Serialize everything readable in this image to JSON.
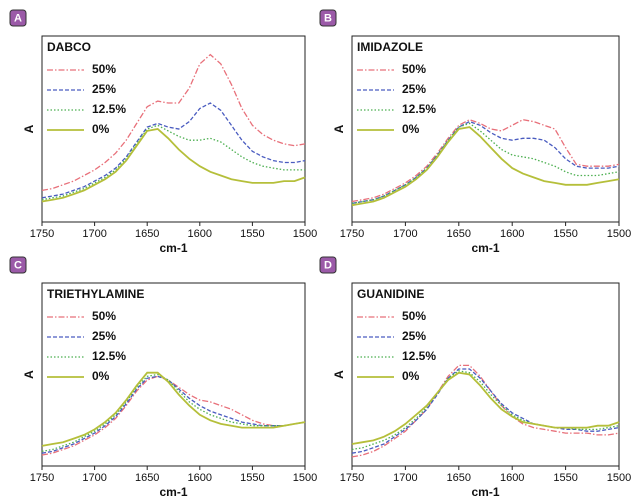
{
  "chart_data": [
    {
      "type": "line",
      "panel": "A",
      "title": "DABCO",
      "xlabel": "cm-1",
      "ylabel": "A",
      "x": [
        1750,
        1740,
        1730,
        1720,
        1710,
        1700,
        1690,
        1680,
        1670,
        1660,
        1650,
        1640,
        1630,
        1620,
        1610,
        1600,
        1590,
        1580,
        1570,
        1560,
        1550,
        1540,
        1530,
        1520,
        1510,
        1500
      ],
      "xlim": [
        1750,
        1500
      ],
      "xticks": [
        1750,
        1700,
        1650,
        1600,
        1550,
        1500
      ],
      "ylim": [
        0,
        1
      ],
      "series": [
        {
          "name": "50%",
          "color": "#e8707a",
          "style": "dashdot",
          "values": [
            0.17,
            0.18,
            0.2,
            0.22,
            0.25,
            0.28,
            0.32,
            0.37,
            0.44,
            0.53,
            0.62,
            0.65,
            0.64,
            0.64,
            0.72,
            0.85,
            0.9,
            0.85,
            0.74,
            0.61,
            0.52,
            0.47,
            0.44,
            0.42,
            0.41,
            0.42
          ]
        },
        {
          "name": "25%",
          "color": "#4a5cc0",
          "style": "dashed",
          "values": [
            0.13,
            0.14,
            0.15,
            0.17,
            0.19,
            0.22,
            0.25,
            0.29,
            0.35,
            0.43,
            0.51,
            0.53,
            0.51,
            0.5,
            0.54,
            0.61,
            0.64,
            0.6,
            0.52,
            0.44,
            0.38,
            0.35,
            0.33,
            0.32,
            0.32,
            0.33
          ]
        },
        {
          "name": "12.5%",
          "color": "#4caf50",
          "style": "dotted",
          "values": [
            0.12,
            0.13,
            0.14,
            0.16,
            0.18,
            0.21,
            0.24,
            0.28,
            0.34,
            0.42,
            0.5,
            0.52,
            0.49,
            0.46,
            0.44,
            0.44,
            0.45,
            0.43,
            0.39,
            0.35,
            0.32,
            0.3,
            0.29,
            0.28,
            0.28,
            0.28
          ]
        },
        {
          "name": "0%",
          "color": "#b5bf3a",
          "style": "solid",
          "values": [
            0.11,
            0.12,
            0.13,
            0.15,
            0.17,
            0.2,
            0.23,
            0.27,
            0.33,
            0.41,
            0.49,
            0.5,
            0.45,
            0.39,
            0.34,
            0.3,
            0.27,
            0.25,
            0.23,
            0.22,
            0.21,
            0.21,
            0.21,
            0.22,
            0.22,
            0.24
          ]
        }
      ]
    },
    {
      "type": "line",
      "panel": "B",
      "title": "IMIDAZOLE",
      "xlabel": "cm-1",
      "ylabel": "A",
      "x": [
        1750,
        1740,
        1730,
        1720,
        1710,
        1700,
        1690,
        1680,
        1670,
        1660,
        1650,
        1640,
        1630,
        1620,
        1610,
        1600,
        1590,
        1580,
        1570,
        1560,
        1550,
        1540,
        1530,
        1520,
        1510,
        1500
      ],
      "xlim": [
        1750,
        1500
      ],
      "xticks": [
        1750,
        1700,
        1650,
        1600,
        1550,
        1500
      ],
      "ylim": [
        0,
        1
      ],
      "series": [
        {
          "name": "50%",
          "color": "#e8707a",
          "style": "dashdot",
          "values": [
            0.11,
            0.12,
            0.13,
            0.15,
            0.18,
            0.21,
            0.25,
            0.3,
            0.37,
            0.45,
            0.52,
            0.55,
            0.53,
            0.5,
            0.49,
            0.52,
            0.55,
            0.54,
            0.52,
            0.5,
            0.4,
            0.31,
            0.3,
            0.3,
            0.3,
            0.31
          ]
        },
        {
          "name": "25%",
          "color": "#4a5cc0",
          "style": "dashed",
          "values": [
            0.1,
            0.11,
            0.12,
            0.14,
            0.17,
            0.2,
            0.24,
            0.29,
            0.36,
            0.44,
            0.51,
            0.54,
            0.52,
            0.48,
            0.45,
            0.44,
            0.45,
            0.45,
            0.44,
            0.4,
            0.34,
            0.3,
            0.29,
            0.29,
            0.29,
            0.3
          ]
        },
        {
          "name": "12.5%",
          "color": "#4caf50",
          "style": "dotted",
          "values": [
            0.1,
            0.11,
            0.12,
            0.14,
            0.17,
            0.2,
            0.24,
            0.29,
            0.36,
            0.44,
            0.51,
            0.53,
            0.49,
            0.44,
            0.39,
            0.36,
            0.35,
            0.34,
            0.32,
            0.3,
            0.27,
            0.25,
            0.25,
            0.25,
            0.26,
            0.27
          ]
        },
        {
          "name": "0%",
          "color": "#b5bf3a",
          "style": "solid",
          "values": [
            0.09,
            0.1,
            0.11,
            0.13,
            0.16,
            0.19,
            0.23,
            0.28,
            0.35,
            0.43,
            0.5,
            0.51,
            0.46,
            0.4,
            0.34,
            0.29,
            0.26,
            0.24,
            0.22,
            0.21,
            0.2,
            0.2,
            0.2,
            0.21,
            0.22,
            0.23
          ]
        }
      ]
    },
    {
      "type": "line",
      "panel": "C",
      "title": "TRIETHYLAMINE",
      "xlabel": "cm-1",
      "ylabel": "A",
      "x": [
        1750,
        1740,
        1730,
        1720,
        1710,
        1700,
        1690,
        1680,
        1670,
        1660,
        1650,
        1640,
        1630,
        1620,
        1610,
        1600,
        1590,
        1580,
        1570,
        1560,
        1550,
        1540,
        1530,
        1520,
        1510,
        1500
      ],
      "xlim": [
        1750,
        1500
      ],
      "xticks": [
        1750,
        1700,
        1650,
        1600,
        1550,
        1500
      ],
      "ylim": [
        0,
        1
      ],
      "series": [
        {
          "name": "50%",
          "color": "#e8707a",
          "style": "dashdot",
          "values": [
            0.06,
            0.07,
            0.09,
            0.11,
            0.14,
            0.17,
            0.21,
            0.26,
            0.33,
            0.41,
            0.47,
            0.49,
            0.47,
            0.43,
            0.39,
            0.36,
            0.35,
            0.33,
            0.31,
            0.28,
            0.25,
            0.23,
            0.22,
            0.22,
            0.23,
            0.24
          ]
        },
        {
          "name": "25%",
          "color": "#4a5cc0",
          "style": "dashed",
          "values": [
            0.07,
            0.08,
            0.1,
            0.12,
            0.15,
            0.18,
            0.22,
            0.27,
            0.34,
            0.42,
            0.48,
            0.49,
            0.47,
            0.42,
            0.37,
            0.33,
            0.3,
            0.28,
            0.26,
            0.24,
            0.23,
            0.22,
            0.22,
            0.22,
            0.23,
            0.24
          ]
        },
        {
          "name": "12.5%",
          "color": "#4caf50",
          "style": "dotted",
          "values": [
            0.08,
            0.09,
            0.11,
            0.13,
            0.16,
            0.19,
            0.23,
            0.28,
            0.35,
            0.43,
            0.49,
            0.5,
            0.47,
            0.41,
            0.35,
            0.31,
            0.28,
            0.26,
            0.24,
            0.23,
            0.22,
            0.22,
            0.22,
            0.22,
            0.23,
            0.24
          ]
        },
        {
          "name": "0%",
          "color": "#b5bf3a",
          "style": "solid",
          "values": [
            0.11,
            0.12,
            0.13,
            0.15,
            0.17,
            0.2,
            0.24,
            0.29,
            0.36,
            0.44,
            0.51,
            0.51,
            0.46,
            0.39,
            0.33,
            0.28,
            0.25,
            0.23,
            0.22,
            0.21,
            0.21,
            0.21,
            0.21,
            0.22,
            0.23,
            0.24
          ]
        }
      ]
    },
    {
      "type": "line",
      "panel": "D",
      "title": "GUANIDINE",
      "xlabel": "cm-1",
      "ylabel": "A",
      "x": [
        1750,
        1740,
        1730,
        1720,
        1710,
        1700,
        1690,
        1680,
        1670,
        1660,
        1650,
        1640,
        1630,
        1620,
        1610,
        1600,
        1590,
        1580,
        1570,
        1560,
        1550,
        1540,
        1530,
        1520,
        1510,
        1500
      ],
      "xlim": [
        1750,
        1500
      ],
      "xticks": [
        1750,
        1700,
        1650,
        1600,
        1550,
        1500
      ],
      "ylim": [
        0,
        1
      ],
      "series": [
        {
          "name": "50%",
          "color": "#e8707a",
          "style": "dashdot",
          "values": [
            0.05,
            0.06,
            0.08,
            0.11,
            0.15,
            0.19,
            0.25,
            0.31,
            0.4,
            0.49,
            0.55,
            0.55,
            0.49,
            0.41,
            0.33,
            0.27,
            0.23,
            0.21,
            0.2,
            0.19,
            0.18,
            0.18,
            0.18,
            0.17,
            0.17,
            0.18
          ]
        },
        {
          "name": "25%",
          "color": "#4a5cc0",
          "style": "dashed",
          "values": [
            0.07,
            0.08,
            0.1,
            0.12,
            0.16,
            0.2,
            0.25,
            0.31,
            0.39,
            0.48,
            0.53,
            0.53,
            0.48,
            0.41,
            0.34,
            0.29,
            0.26,
            0.23,
            0.22,
            0.21,
            0.2,
            0.2,
            0.19,
            0.19,
            0.2,
            0.21
          ]
        },
        {
          "name": "12.5%",
          "color": "#4caf50",
          "style": "dotted",
          "values": [
            0.09,
            0.1,
            0.12,
            0.14,
            0.17,
            0.21,
            0.26,
            0.32,
            0.4,
            0.48,
            0.52,
            0.51,
            0.46,
            0.39,
            0.33,
            0.28,
            0.25,
            0.23,
            0.22,
            0.21,
            0.21,
            0.2,
            0.2,
            0.2,
            0.21,
            0.22
          ]
        },
        {
          "name": "0%",
          "color": "#b5bf3a",
          "style": "solid",
          "values": [
            0.12,
            0.13,
            0.14,
            0.16,
            0.19,
            0.23,
            0.28,
            0.33,
            0.4,
            0.47,
            0.51,
            0.5,
            0.44,
            0.37,
            0.31,
            0.27,
            0.24,
            0.23,
            0.22,
            0.21,
            0.21,
            0.21,
            0.21,
            0.22,
            0.22,
            0.24
          ]
        }
      ]
    }
  ]
}
